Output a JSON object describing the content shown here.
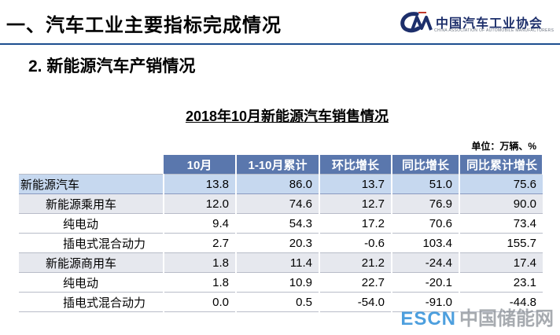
{
  "slide": {
    "heading": "一、汽车工业主要指标完成情况",
    "subheading": "2. 新能源汽车产销情况"
  },
  "logo": {
    "name": "中国汽车工业协会",
    "subtitle": "CHINA ASSOCIATION OF AUTOMOBILE MANUFACTURERS",
    "brand_color": "#1d2f6b"
  },
  "table": {
    "title": "2018年10月新能源汽车销售情况",
    "unit": "单位：万辆、%",
    "columns": [
      "10月",
      "1-10月累计",
      "环比增长",
      "同比增长",
      "同比累计增长"
    ],
    "rows": [
      {
        "label": "新能源汽车",
        "level": 0,
        "values": [
          "13.8",
          "86.0",
          "13.7",
          "51.0",
          "75.6"
        ]
      },
      {
        "label": "新能源乘用车",
        "level": 1,
        "values": [
          "12.0",
          "74.6",
          "12.7",
          "76.9",
          "90.0"
        ]
      },
      {
        "label": "纯电动",
        "level": 2,
        "values": [
          "9.4",
          "54.3",
          "17.2",
          "70.6",
          "73.4"
        ]
      },
      {
        "label": "插电式混合动力",
        "level": 2,
        "values": [
          "2.7",
          "20.3",
          "-0.6",
          "103.4",
          "155.7"
        ]
      },
      {
        "label": "新能源商用车",
        "level": 1,
        "values": [
          "1.8",
          "11.4",
          "21.2",
          "-24.4",
          "17.4"
        ]
      },
      {
        "label": "纯电动",
        "level": 2,
        "values": [
          "1.8",
          "10.9",
          "22.7",
          "-20.1",
          "23.1"
        ]
      },
      {
        "label": "插电式混合动力",
        "level": 2,
        "values": [
          "0.0",
          "0.5",
          "-54.0",
          "-91.0",
          "-44.8"
        ]
      }
    ],
    "colors": {
      "header": "#5a77ad",
      "total_row": "#c6d8ef",
      "category_row": "#e6e8ee"
    }
  },
  "watermark": {
    "brand": "ESCN",
    "text": "中国储能网"
  }
}
